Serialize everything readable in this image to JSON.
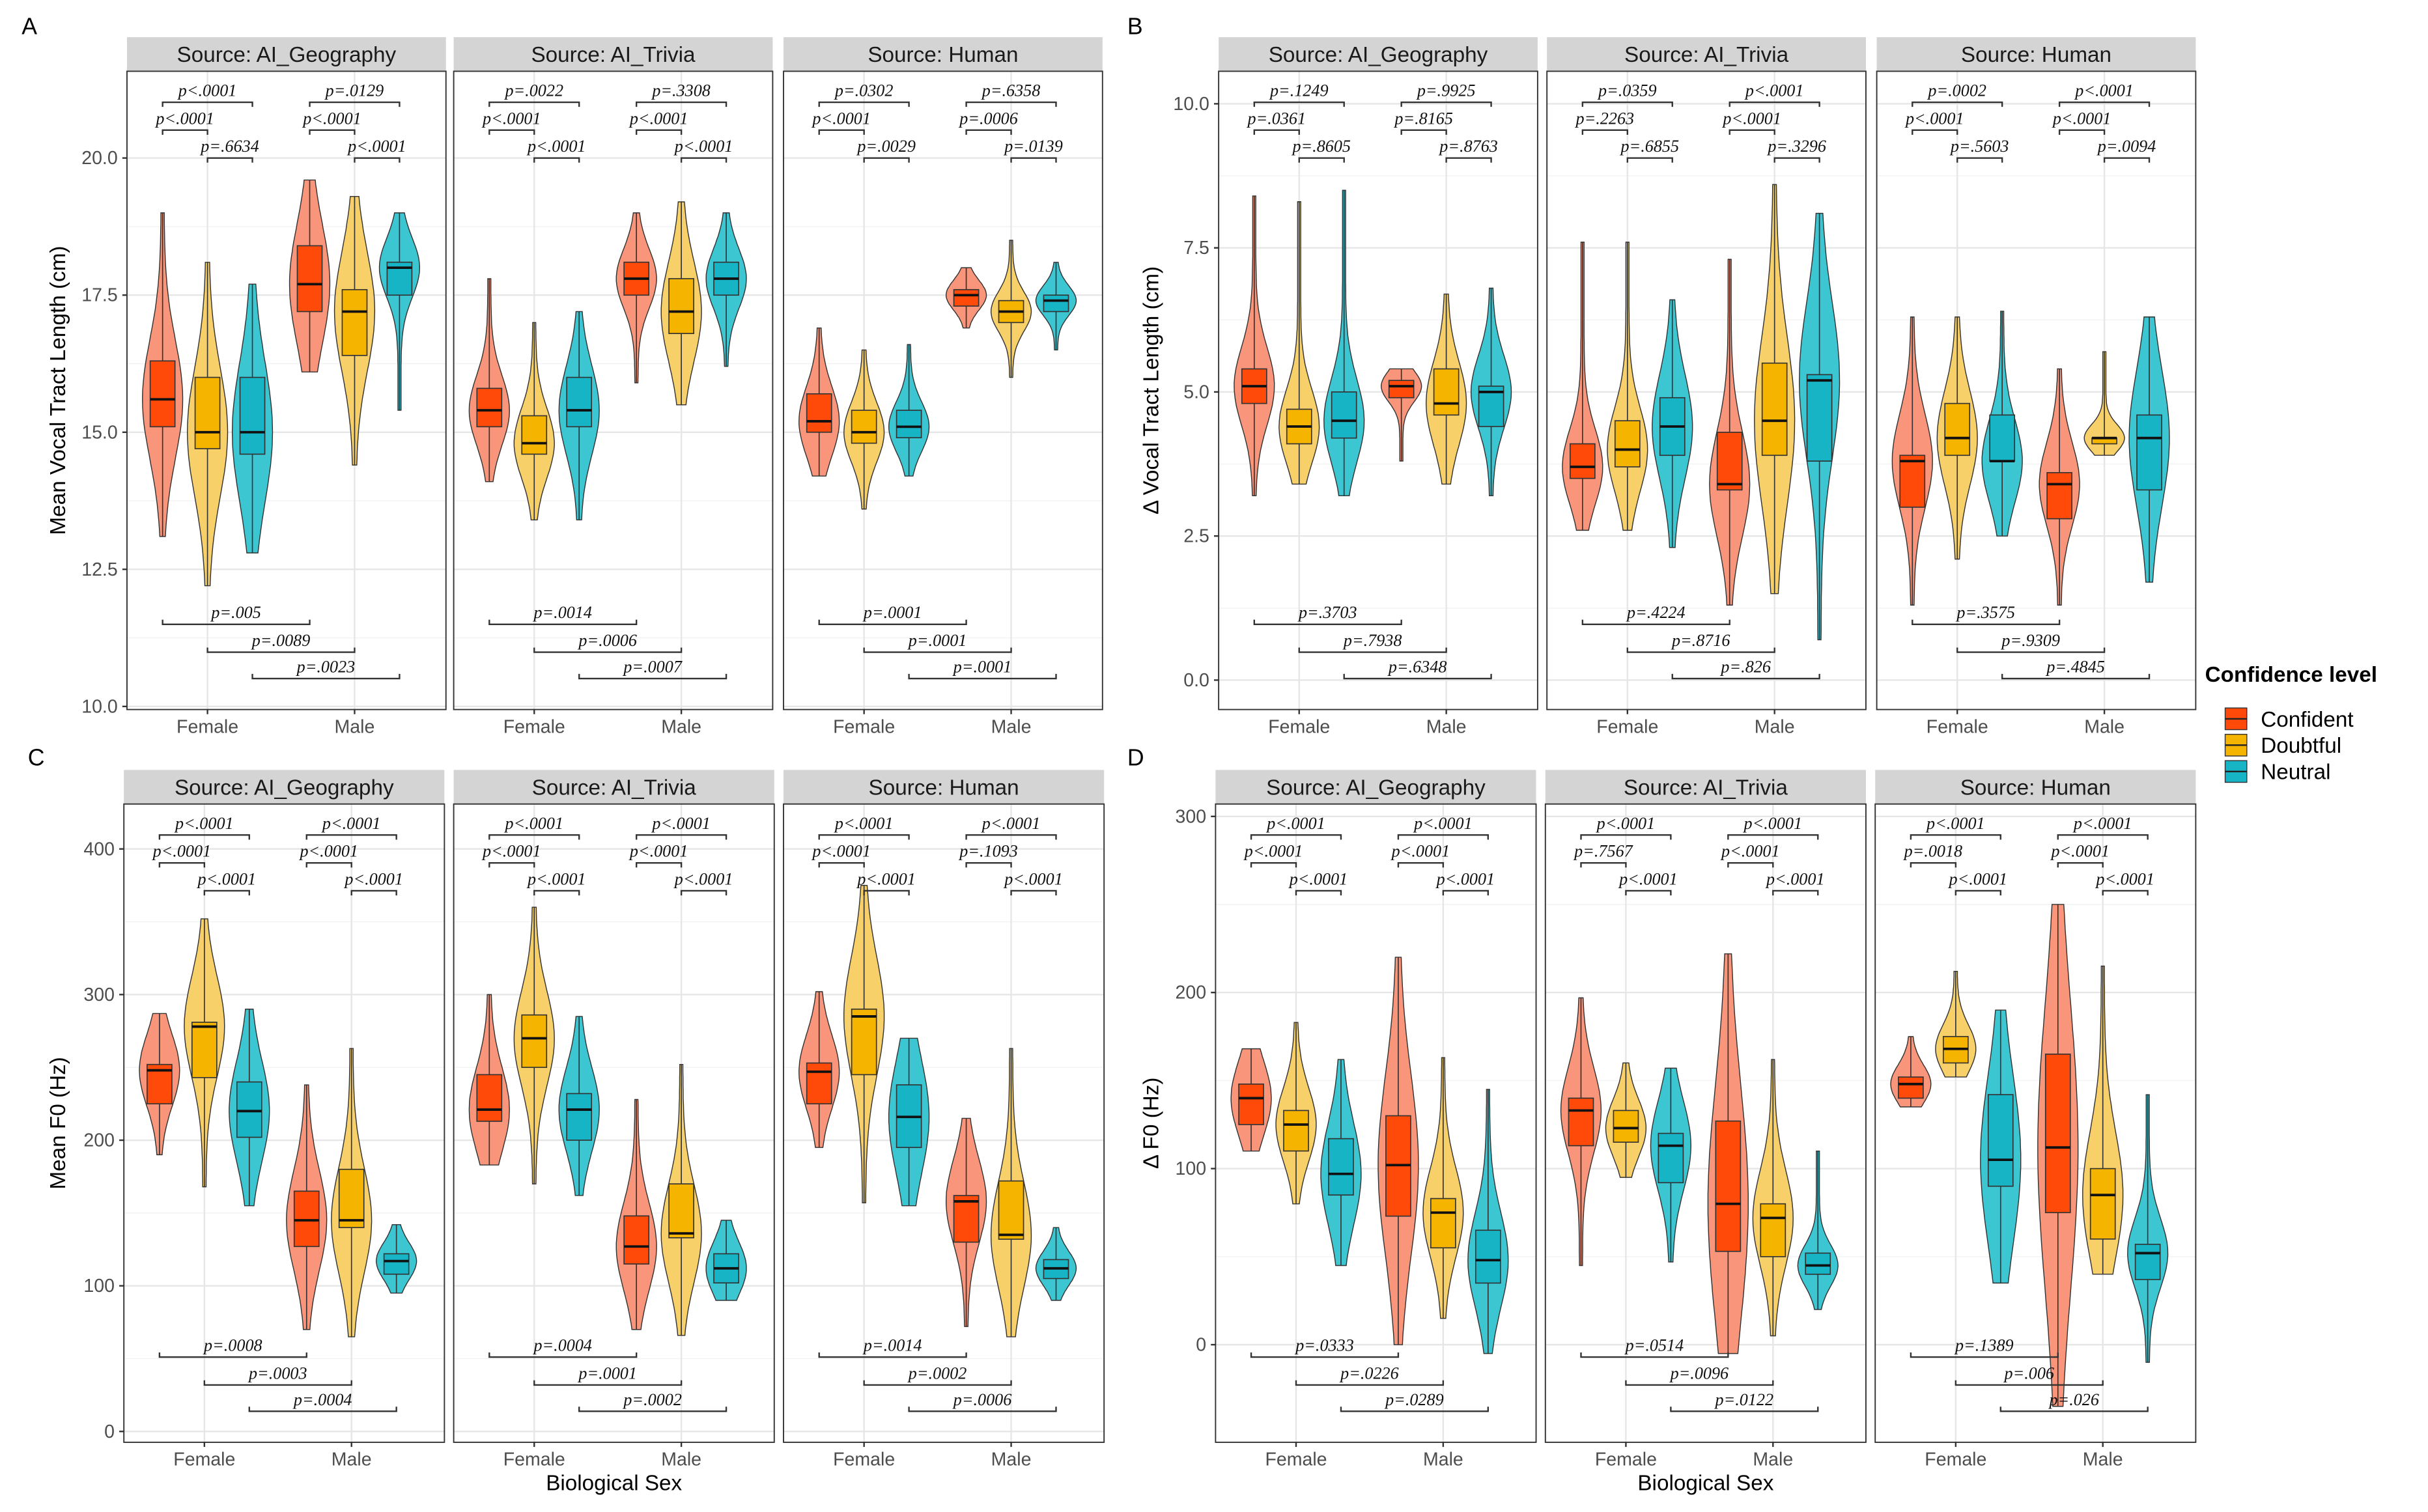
{
  "legend": {
    "title": "Confidence level",
    "items": [
      {
        "label": "Confident",
        "color": "#FF4A0A",
        "violin": "#F9957A"
      },
      {
        "label": "Doubtful",
        "color": "#F4B400",
        "violin": "#F7D06A"
      },
      {
        "label": "Neutral",
        "color": "#17B4C5",
        "violin": "#3CC6D2"
      }
    ]
  },
  "chart_data": [
    {
      "type": "violin-box",
      "panel": "A",
      "ylabel": "Mean Vocal Tract Length (cm)",
      "xlabel": "",
      "categories": [
        "Female",
        "Male"
      ],
      "series": [
        "Confident",
        "Doubtful",
        "Neutral"
      ],
      "stats_order": [
        "min",
        "q1",
        "median",
        "q3",
        "max"
      ],
      "ylim": [
        10,
        21.5
      ],
      "yticks": [
        10,
        12.5,
        15,
        17.5,
        20
      ],
      "ytick_labels": [
        "10.0",
        "12.5",
        "15.0",
        "17.5",
        "20.0"
      ],
      "facets": [
        {
          "strip": "Source: AI_Geography",
          "Female": [
            [
              13.1,
              15.1,
              15.6,
              16.3,
              19.0
            ],
            [
              12.2,
              14.7,
              15.0,
              16.0,
              18.1
            ],
            [
              12.8,
              14.6,
              15.0,
              16.0,
              17.7
            ]
          ],
          "Male": [
            [
              16.1,
              17.2,
              17.7,
              18.4,
              19.6
            ],
            [
              14.4,
              16.4,
              17.2,
              17.6,
              19.3
            ],
            [
              15.4,
              17.5,
              18.0,
              18.1,
              19.0
            ]
          ],
          "top_pvalues": {
            "Female": [
              "p<.0001",
              "p<.0001",
              "p=.6634"
            ],
            "Male": [
              "p=.0129",
              "p<.0001",
              "p<.0001"
            ]
          },
          "bottom_pvalues": [
            "p=.005",
            "p=.0089",
            "p=.0023"
          ]
        },
        {
          "strip": "Source: AI_Trivia",
          "Female": [
            [
              14.1,
              15.1,
              15.4,
              15.8,
              17.8
            ],
            [
              13.4,
              14.6,
              14.8,
              15.3,
              17.0
            ],
            [
              13.4,
              15.1,
              15.4,
              16.0,
              17.2
            ]
          ],
          "Male": [
            [
              15.9,
              17.5,
              17.8,
              18.1,
              19.0
            ],
            [
              15.5,
              16.8,
              17.2,
              17.8,
              19.2
            ],
            [
              16.2,
              17.5,
              17.8,
              18.1,
              19.0
            ]
          ],
          "top_pvalues": {
            "Female": [
              "p=.0022",
              "p<.0001",
              "p<.0001"
            ],
            "Male": [
              "p=.3308",
              "p<.0001",
              "p<.0001"
            ]
          },
          "bottom_pvalues": [
            "p=.0014",
            "p=.0006",
            "p=.0007"
          ]
        },
        {
          "strip": "Source: Human",
          "Female": [
            [
              14.2,
              15.0,
              15.2,
              15.7,
              16.9
            ],
            [
              13.6,
              14.8,
              15.0,
              15.4,
              16.5
            ],
            [
              14.2,
              14.9,
              15.1,
              15.4,
              16.6
            ]
          ],
          "Male": [
            [
              16.9,
              17.3,
              17.5,
              17.6,
              18.0
            ],
            [
              16.0,
              17.0,
              17.2,
              17.4,
              18.5
            ],
            [
              16.5,
              17.2,
              17.4,
              17.5,
              18.1
            ]
          ],
          "top_pvalues": {
            "Female": [
              "p=.0302",
              "p<.0001",
              "p=.0029"
            ],
            "Male": [
              "p=.6358",
              "p=.0006",
              "p=.0139"
            ]
          },
          "bottom_pvalues": [
            "p=.0001",
            "p=.0001",
            "p=.0001"
          ]
        }
      ]
    },
    {
      "type": "violin-box",
      "panel": "B",
      "ylabel": "Δ Vocal Tract Length (cm)",
      "xlabel": "",
      "categories": [
        "Female",
        "Male"
      ],
      "series": [
        "Confident",
        "Doubtful",
        "Neutral"
      ],
      "stats_order": [
        "min",
        "q1",
        "median",
        "q3",
        "max"
      ],
      "ylim": [
        -0.5,
        11
      ],
      "yticks": [
        0,
        2.5,
        5,
        7.5,
        10
      ],
      "ytick_labels": [
        "0.0",
        "2.5",
        "5.0",
        "7.5",
        "10.0"
      ],
      "facets": [
        {
          "strip": "Source: AI_Geography",
          "Female": [
            [
              3.2,
              4.8,
              5.1,
              5.4,
              8.4
            ],
            [
              3.4,
              4.1,
              4.4,
              4.7,
              8.3
            ],
            [
              3.2,
              4.2,
              4.5,
              5.0,
              8.5
            ]
          ],
          "Male": [
            [
              3.8,
              4.9,
              5.1,
              5.2,
              5.4
            ],
            [
              3.4,
              4.6,
              4.8,
              5.4,
              6.7
            ],
            [
              3.2,
              4.4,
              5.0,
              5.1,
              6.8
            ]
          ],
          "top_pvalues": {
            "Female": [
              "p=.1249",
              "p=.0361",
              "p=.8605"
            ],
            "Male": [
              "p=.9925",
              "p=.8165",
              "p=.8763"
            ]
          },
          "bottom_pvalues": [
            "p=.3703",
            "p=.7938",
            "p=.6348"
          ]
        },
        {
          "strip": "Source: AI_Trivia",
          "Female": [
            [
              2.6,
              3.5,
              3.7,
              4.1,
              7.6
            ],
            [
              2.6,
              3.7,
              4.0,
              4.5,
              7.6
            ],
            [
              2.3,
              3.9,
              4.4,
              4.9,
              6.6
            ]
          ],
          "Male": [
            [
              1.3,
              3.3,
              3.4,
              4.3,
              7.3
            ],
            [
              1.5,
              3.9,
              4.5,
              5.5,
              8.6
            ],
            [
              0.7,
              3.8,
              5.2,
              5.3,
              8.1
            ]
          ],
          "top_pvalues": {
            "Female": [
              "p=.0359",
              "p=.2263",
              "p=.6855"
            ],
            "Male": [
              "p<.0001",
              "p<.0001",
              "p=.3296"
            ]
          },
          "bottom_pvalues": [
            "p=.4224",
            "p=.8716",
            "p=.826"
          ]
        },
        {
          "strip": "Source: Human",
          "Female": [
            [
              1.3,
              3.0,
              3.8,
              3.9,
              6.3
            ],
            [
              2.1,
              3.9,
              4.2,
              4.8,
              6.3
            ],
            [
              2.5,
              3.8,
              3.8,
              4.6,
              6.4
            ]
          ],
          "Male": [
            [
              1.3,
              2.8,
              3.4,
              3.6,
              5.4
            ],
            [
              3.9,
              4.1,
              4.2,
              4.2,
              5.7
            ],
            [
              1.7,
              3.3,
              4.2,
              4.6,
              6.3
            ]
          ],
          "top_pvalues": {
            "Female": [
              "p=.0002",
              "p<.0001",
              "p=.5603"
            ],
            "Male": [
              "p<.0001",
              "p<.0001",
              "p=.0094"
            ]
          },
          "bottom_pvalues": [
            "p=.3575",
            "p=.9309",
            "p=.4845"
          ]
        }
      ]
    },
    {
      "type": "violin-box",
      "panel": "C",
      "ylabel": "Mean F0 (Hz)",
      "xlabel": "Biological Sex",
      "categories": [
        "Female",
        "Male"
      ],
      "series": [
        "Confident",
        "Doubtful",
        "Neutral"
      ],
      "stats_order": [
        "min",
        "q1",
        "median",
        "q3",
        "max"
      ],
      "ylim": [
        -5,
        430
      ],
      "yticks": [
        0,
        100,
        200,
        300,
        400
      ],
      "ytick_labels": [
        "0",
        "100",
        "200",
        "300",
        "400"
      ],
      "facets": [
        {
          "strip": "Source: AI_Geography",
          "Female": [
            [
              190,
              225,
              248,
              252,
              287
            ],
            [
              168,
              243,
              278,
              281,
              352
            ],
            [
              155,
              202,
              220,
              240,
              290
            ]
          ],
          "Male": [
            [
              70,
              127,
              145,
              165,
              238
            ],
            [
              65,
              140,
              145,
              180,
              263
            ],
            [
              95,
              108,
              117,
              122,
              142
            ]
          ],
          "top_pvalues": {
            "Female": [
              "p<.0001",
              "p<.0001",
              "p<.0001"
            ],
            "Male": [
              "p<.0001",
              "p<.0001",
              "p<.0001"
            ]
          },
          "bottom_pvalues": [
            "p=.0008",
            "p=.0003",
            "p=.0004"
          ]
        },
        {
          "strip": "Source: AI_Trivia",
          "Female": [
            [
              183,
              213,
              221,
              245,
              300
            ],
            [
              170,
              250,
              270,
              286,
              360
            ],
            [
              162,
              200,
              221,
              232,
              285
            ]
          ],
          "Male": [
            [
              70,
              115,
              127,
              148,
              228
            ],
            [
              66,
              133,
              136,
              170,
              252
            ],
            [
              90,
              102,
              112,
              122,
              145
            ]
          ],
          "top_pvalues": {
            "Female": [
              "p<.0001",
              "p<.0001",
              "p<.0001"
            ],
            "Male": [
              "p<.0001",
              "p<.0001",
              "p<.0001"
            ]
          },
          "bottom_pvalues": [
            "p=.0004",
            "p=.0001",
            "p=.0002"
          ]
        },
        {
          "strip": "Source: Human",
          "Female": [
            [
              195,
              225,
              247,
              253,
              302
            ],
            [
              157,
              245,
              285,
              290,
              375
            ],
            [
              155,
              195,
              216,
              238,
              270
            ]
          ],
          "Male": [
            [
              72,
              130,
              158,
              162,
              215
            ],
            [
              65,
              132,
              135,
              172,
              263
            ],
            [
              90,
              105,
              112,
              118,
              140
            ]
          ],
          "top_pvalues": {
            "Female": [
              "p<.0001",
              "p<.0001",
              "p<.0001"
            ],
            "Male": [
              "p<.0001",
              "p=.1093",
              "p<.0001"
            ]
          },
          "bottom_pvalues": [
            "p=.0014",
            "p=.0002",
            "p=.0006"
          ]
        }
      ]
    },
    {
      "type": "violin-box",
      "panel": "D",
      "ylabel": "Δ F0 (Hz)",
      "xlabel": "Biological Sex",
      "categories": [
        "Female",
        "Male"
      ],
      "series": [
        "Confident",
        "Doubtful",
        "Neutral"
      ],
      "stats_order": [
        "min",
        "q1",
        "median",
        "q3",
        "max"
      ],
      "ylim": [
        -55,
        320
      ],
      "yticks": [
        0,
        100,
        200,
        300
      ],
      "ytick_labels": [
        "0",
        "100",
        "200",
        "300"
      ],
      "facets": [
        {
          "strip": "Source: AI_Geography",
          "Female": [
            [
              110,
              125,
              140,
              148,
              168
            ],
            [
              80,
              110,
              125,
              133,
              183
            ],
            [
              45,
              85,
              97,
              117,
              162
            ]
          ],
          "Male": [
            [
              0,
              73,
              102,
              130,
              220
            ],
            [
              15,
              55,
              75,
              83,
              163
            ],
            [
              -5,
              35,
              48,
              65,
              145
            ]
          ],
          "top_pvalues": {
            "Female": [
              "p<.0001",
              "p<.0001",
              "p<.0001"
            ],
            "Male": [
              "p<.0001",
              "p<.0001",
              "p<.0001"
            ]
          },
          "bottom_pvalues": [
            "p=.0333",
            "p=.0226",
            "p=.0289"
          ]
        },
        {
          "strip": "Source: AI_Trivia",
          "Female": [
            [
              45,
              113,
              133,
              140,
              197
            ],
            [
              95,
              115,
              123,
              133,
              160
            ],
            [
              47,
              92,
              113,
              120,
              157
            ]
          ],
          "Male": [
            [
              -5,
              53,
              80,
              127,
              222
            ],
            [
              5,
              50,
              72,
              80,
              162
            ],
            [
              20,
              40,
              45,
              52,
              110
            ]
          ],
          "top_pvalues": {
            "Female": [
              "p<.0001",
              "p=.7567",
              "p<.0001"
            ],
            "Male": [
              "p<.0001",
              "p<.0001",
              "p<.0001"
            ]
          },
          "bottom_pvalues": [
            "p=.0514",
            "p=.0096",
            "p=.0122"
          ]
        },
        {
          "strip": "Source: Human",
          "Female": [
            [
              135,
              140,
              148,
              152,
              175
            ],
            [
              152,
              160,
              168,
              175,
              212
            ],
            [
              35,
              90,
              105,
              142,
              190
            ]
          ],
          "Male": [
            [
              -35,
              75,
              112,
              165,
              250
            ],
            [
              40,
              60,
              85,
              100,
              215
            ],
            [
              -10,
              37,
              52,
              57,
              142
            ]
          ],
          "top_pvalues": {
            "Female": [
              "p<.0001",
              "p=.0018",
              "p<.0001"
            ],
            "Male": [
              "p<.0001",
              "p<.0001",
              "p<.0001"
            ]
          },
          "bottom_pvalues": [
            "p=.1389",
            "p=.006",
            "p=.026"
          ]
        }
      ]
    }
  ]
}
